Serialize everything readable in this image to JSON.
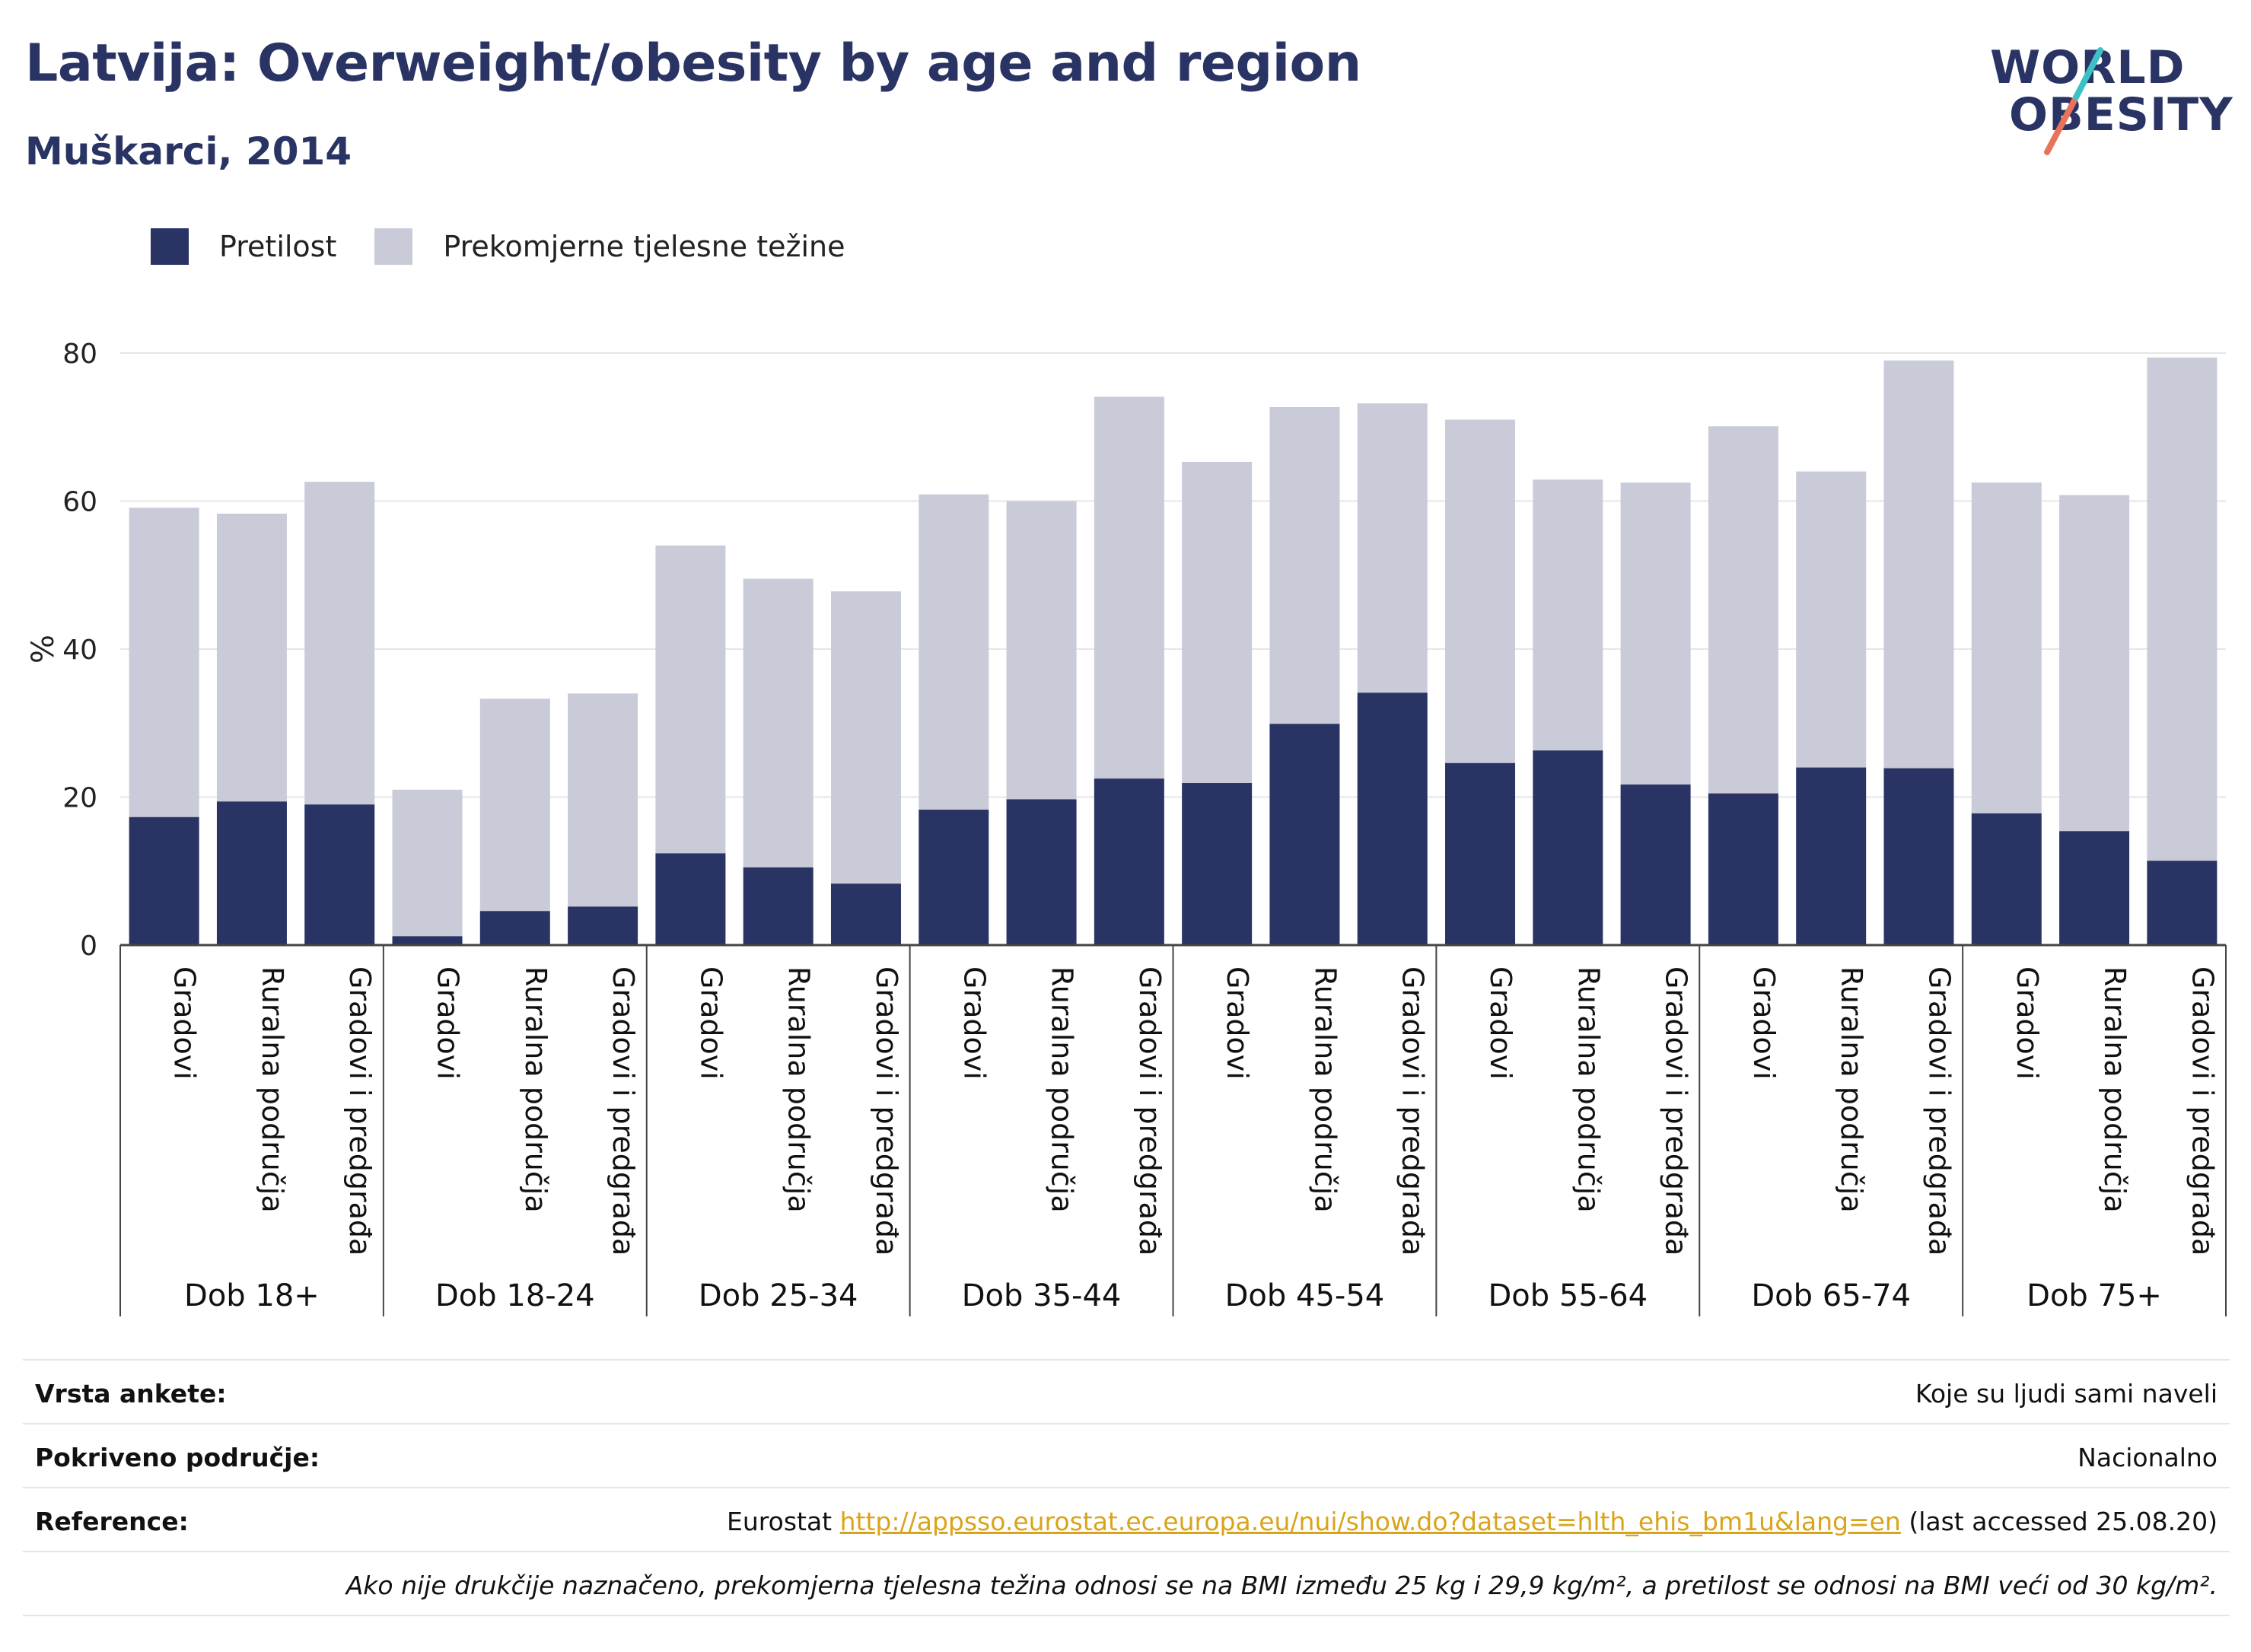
{
  "header": {
    "title": "Latvija: Overweight/obesity by age and region",
    "subtitle": "Muškarci, 2014",
    "logo_line1": "WORLD",
    "logo_line2": "OBESITY"
  },
  "legend": {
    "items": [
      {
        "label": "Pretilost",
        "color": "#2a3464"
      },
      {
        "label": "Prekomjerne tjelesne težine",
        "color": "#c9cbd8"
      }
    ]
  },
  "chart_data": {
    "type": "bar",
    "stacked": true,
    "ylabel": "%",
    "ylim": [
      0,
      80
    ],
    "yticks": [
      0,
      20,
      40,
      60,
      80
    ],
    "grid": true,
    "legend_position": "top-left",
    "groups": [
      "Dob 18+",
      "Dob 18-24",
      "Dob 25-34",
      "Dob 35-44",
      "Dob 45-54",
      "Dob 55-64",
      "Dob 65-74",
      "Dob 75+"
    ],
    "subcategories": [
      "Gradovi",
      "Ruralna područja",
      "Gradovi i predgrađa"
    ],
    "series": [
      {
        "name": "Pretilost",
        "color": "#2a3464",
        "values": [
          17.3,
          19.4,
          19.0,
          1.2,
          4.6,
          5.2,
          12.4,
          10.5,
          8.3,
          18.3,
          19.7,
          22.5,
          21.9,
          29.9,
          34.1,
          24.6,
          26.3,
          21.7,
          20.5,
          24.0,
          23.9,
          17.8,
          15.4,
          11.4
        ]
      },
      {
        "name": "Prekomjerne tjelesne težine",
        "color": "#c9cbd8",
        "values": [
          41.8,
          38.9,
          43.6,
          19.8,
          28.7,
          28.8,
          41.6,
          39.0,
          39.5,
          42.6,
          40.3,
          51.6,
          43.4,
          42.8,
          39.1,
          46.4,
          36.6,
          40.8,
          49.6,
          40.0,
          55.1,
          44.7,
          45.4,
          68.0
        ]
      }
    ]
  },
  "info": {
    "survey_type_label": "Vrsta ankete:",
    "survey_type_value": "Koje su ljudi sami naveli",
    "coverage_label": "Pokriveno područje:",
    "coverage_value": "Nacionalno",
    "reference_label": "Reference:",
    "reference_prefix": "Eurostat",
    "reference_link": "http://appsso.eurostat.ec.europa.eu/nui/show.do?dataset=hlth_ehis_bm1u&lang=en",
    "reference_suffix": "(last accessed 25.08.20)",
    "note": "Ako nije drukčije naznačeno, prekomjerna tjelesna težina odnosi se na BMI između 25 kg i 29,9 kg/m², a pretilost se odnosi na BMI veći od 30 kg/m²."
  }
}
